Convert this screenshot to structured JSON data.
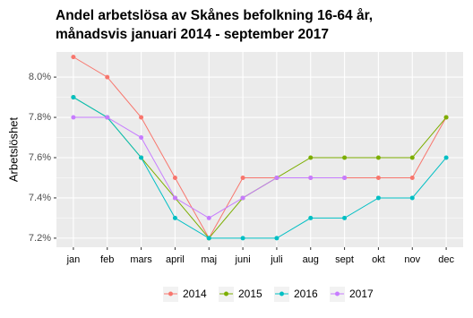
{
  "chart_data": {
    "type": "line",
    "title": [
      "Andel arbetslösa av Skånes befolkning 16-64 år,",
      "månadsvis januari 2014 - september 2017"
    ],
    "y_label": "Arbetslöshet",
    "categories": [
      "jan",
      "feb",
      "mars",
      "april",
      "maj",
      "juni",
      "juli",
      "aug",
      "sept",
      "okt",
      "nov",
      "dec"
    ],
    "series": [
      {
        "name": "2014",
        "color": "#F8766D",
        "values": [
          8.1,
          8.0,
          7.8,
          7.5,
          7.2,
          7.5,
          7.5,
          7.5,
          7.5,
          7.5,
          7.5,
          7.8
        ]
      },
      {
        "name": "2015",
        "color": "#7CAE00",
        "values": [
          7.9,
          7.8,
          7.6,
          7.4,
          7.2,
          7.4,
          7.5,
          7.6,
          7.6,
          7.6,
          7.6,
          7.8
        ]
      },
      {
        "name": "2016",
        "color": "#00BFC4",
        "values": [
          7.9,
          7.8,
          7.6,
          7.3,
          7.2,
          7.2,
          7.2,
          7.3,
          7.3,
          7.4,
          7.4,
          7.6
        ]
      },
      {
        "name": "2017",
        "color": "#C77CFF",
        "values": [
          7.8,
          7.8,
          7.7,
          7.4,
          7.3,
          7.4,
          7.5,
          7.5,
          7.5,
          null,
          null,
          null
        ]
      }
    ],
    "ylim": [
      7.155,
      8.125
    ],
    "yticks": [
      {
        "value": 7.2,
        "label": "7.2%"
      },
      {
        "value": 7.4,
        "label": "7.4%"
      },
      {
        "value": 7.6,
        "label": "7.6%"
      },
      {
        "value": 7.8,
        "label": "7.8%"
      },
      {
        "value": 8.0,
        "label": "8.0%"
      }
    ],
    "grid": true,
    "legend": "bottom"
  }
}
